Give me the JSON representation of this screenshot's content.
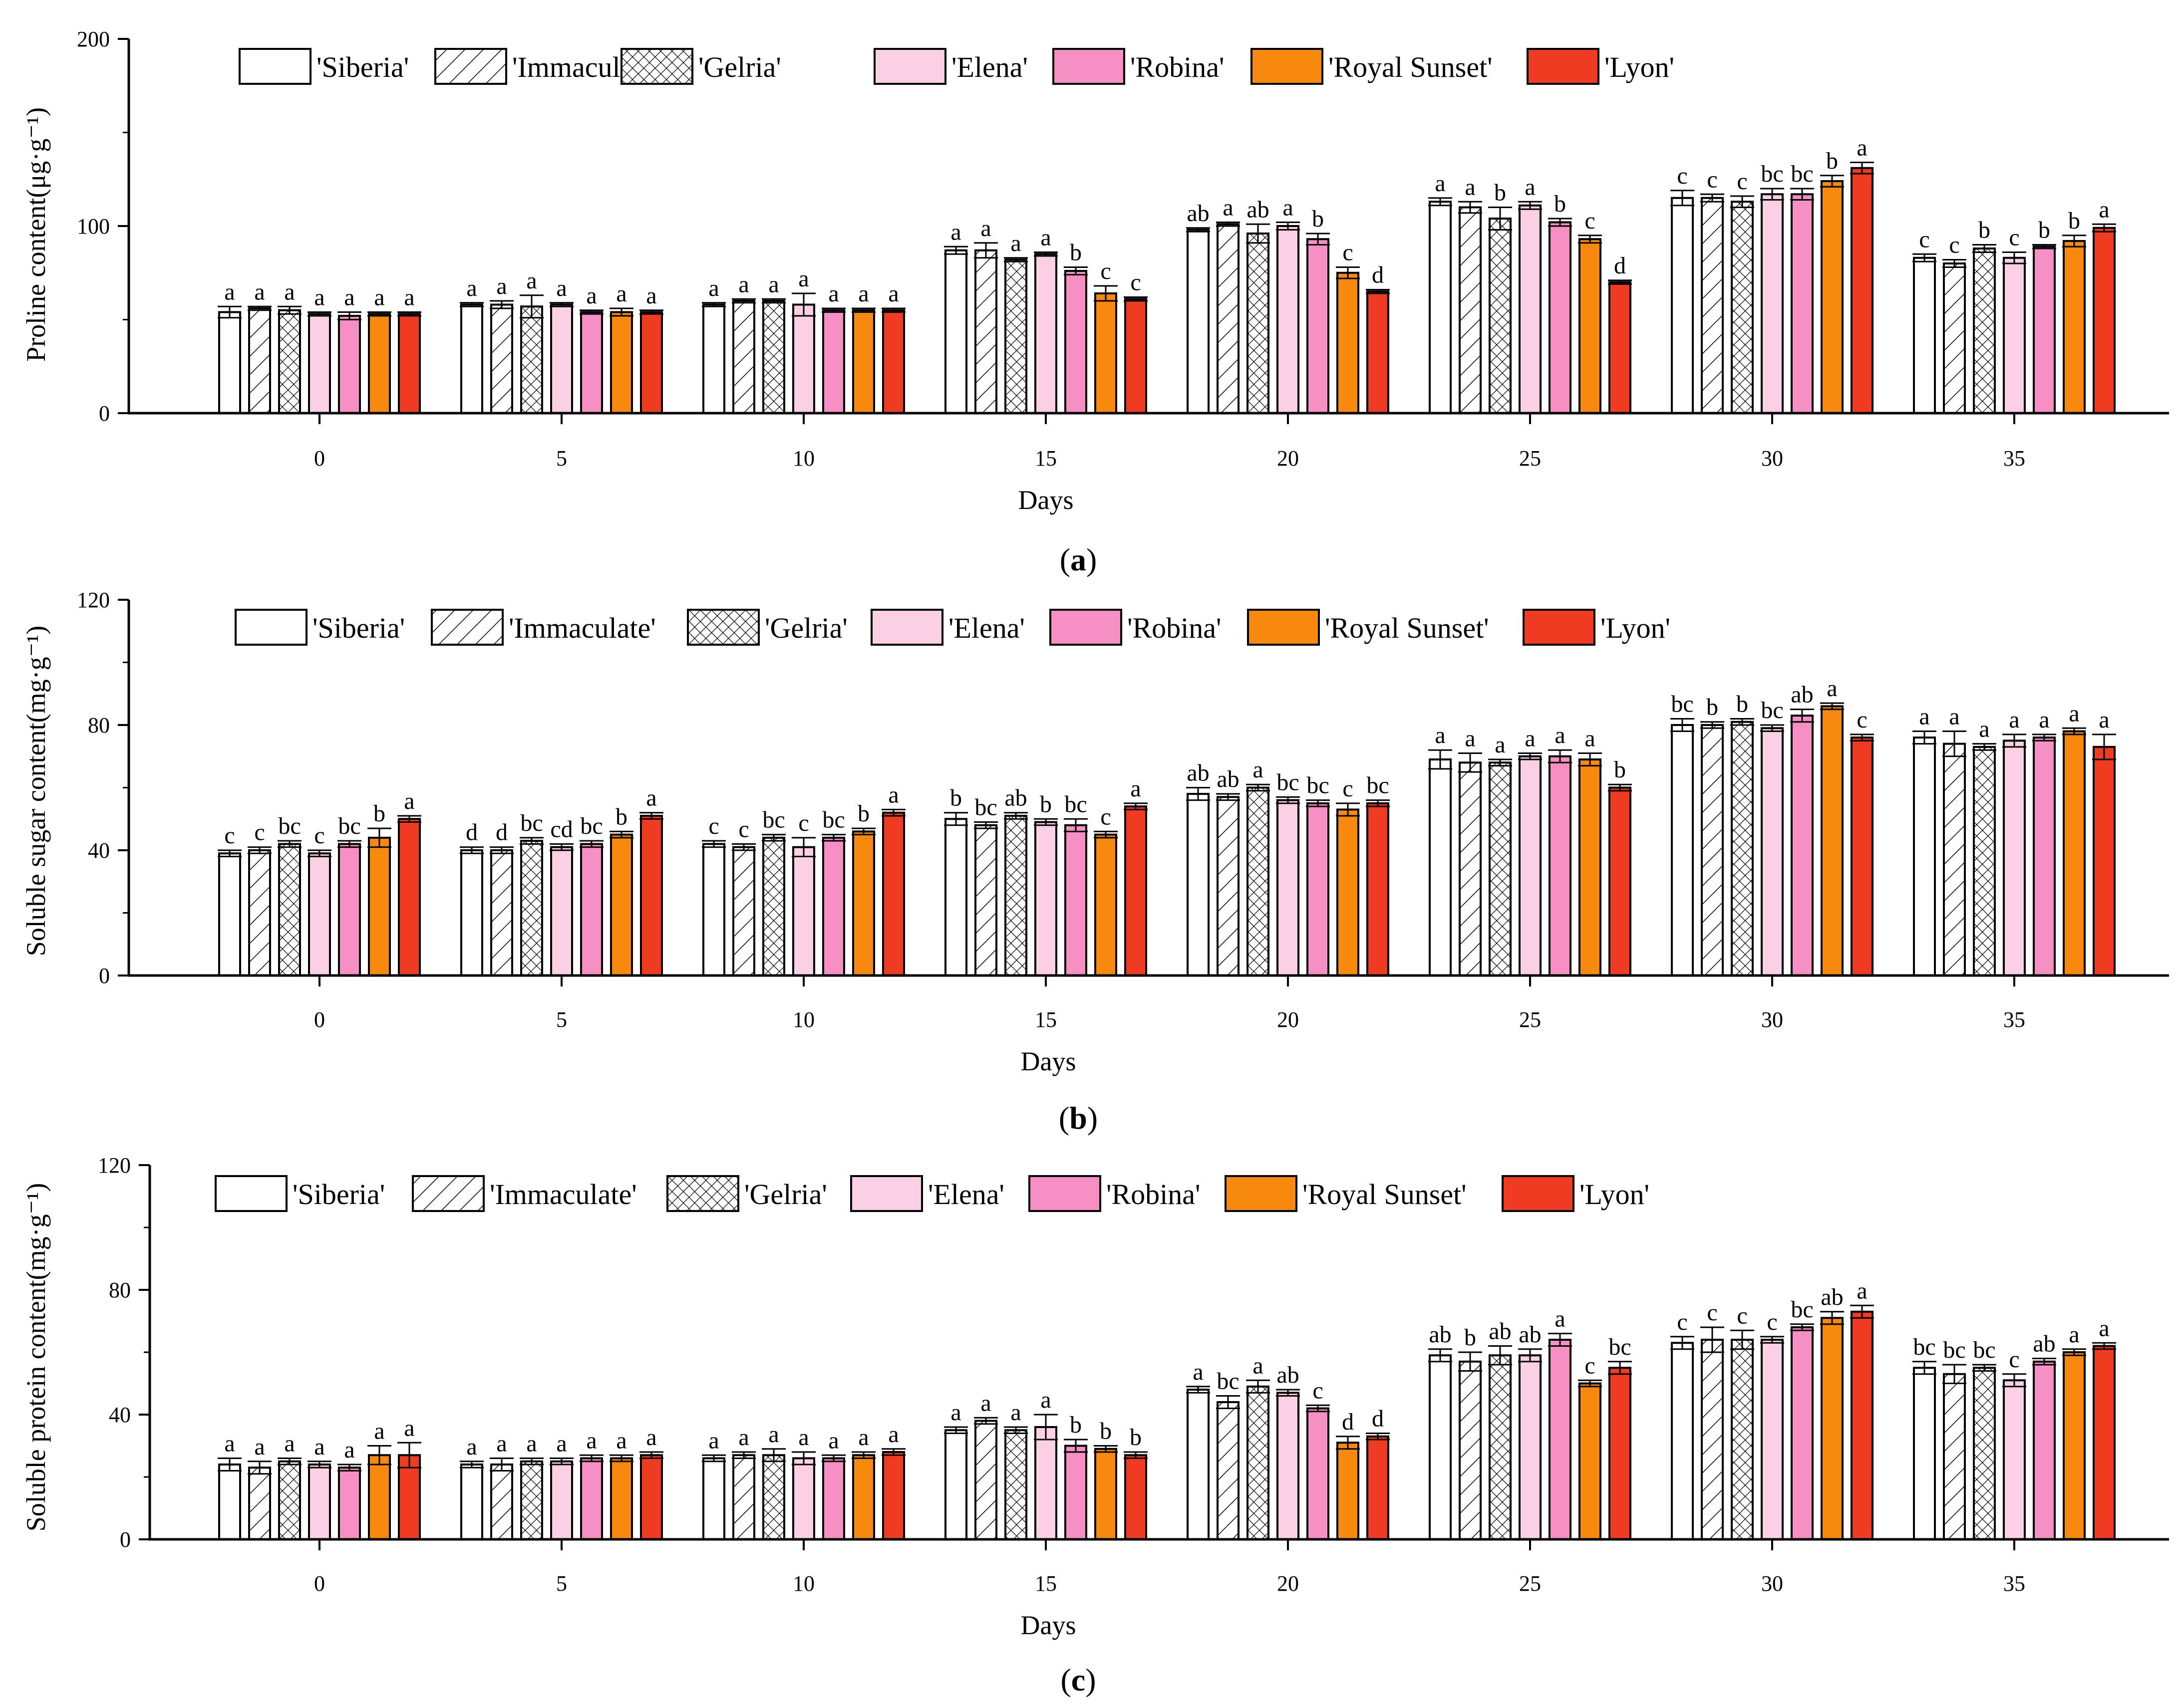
{
  "legend": [
    "'Siberia'",
    "'Immaculate'",
    "'Gelria'",
    "'Elena'",
    "'Robina'",
    "'Royal Sunset'",
    "'Lyon'"
  ],
  "colors": {
    "Siberia": "#ffffff",
    "Immaculate": "#ffffff",
    "Gelria": "#ffffff",
    "Elena": "#fcd0e4",
    "Robina": "#f58fc4",
    "Royal Sunset": "#f78a0e",
    "Lyon": "#ef3b21"
  },
  "chart_data": [
    {
      "type": "bar",
      "panel": "(a)",
      "panel_letter": "a",
      "xlabel": "Days",
      "ylabel": "Proline content(μg·g⁻¹)",
      "ylim": [
        0,
        200
      ],
      "yticks": [
        0,
        100,
        200
      ],
      "categories": [
        "0",
        "5",
        "10",
        "15",
        "20",
        "25",
        "30",
        "35"
      ],
      "series": [
        {
          "name": "'Siberia'",
          "values": [
            54,
            58,
            58,
            87,
            98,
            113,
            115,
            83
          ],
          "errors": [
            3,
            1,
            1,
            2,
            1,
            2,
            4,
            2
          ],
          "sig": [
            "a",
            "a",
            "a",
            "a",
            "ab",
            "a",
            "c",
            "c"
          ]
        },
        {
          "name": "'Immaculate'",
          "values": [
            56,
            58,
            60,
            87,
            101,
            110,
            115,
            80
          ],
          "errors": [
            1,
            2,
            1,
            4,
            1,
            3,
            2,
            2
          ],
          "sig": [
            "a",
            "a",
            "a",
            "a",
            "a",
            "a",
            "c",
            "c"
          ]
        },
        {
          "name": "'Gelria'",
          "values": [
            55,
            57,
            60,
            82,
            96,
            104,
            113,
            88
          ],
          "errors": [
            2,
            6,
            1,
            1,
            5,
            6,
            3,
            2
          ],
          "sig": [
            "a",
            "a",
            "a",
            "a",
            "ab",
            "b",
            "c",
            "b"
          ]
        },
        {
          "name": "'Elena'",
          "values": [
            53,
            58,
            58,
            85,
            100,
            111,
            117,
            83
          ],
          "errors": [
            1,
            1,
            6,
            1,
            2,
            2,
            3,
            3
          ],
          "sig": [
            "a",
            "a",
            "a",
            "a",
            "a",
            "a",
            "bc",
            "c"
          ]
        },
        {
          "name": "'Robina'",
          "values": [
            52,
            54,
            55,
            76,
            93,
            102,
            117,
            89
          ],
          "errors": [
            2,
            1,
            1,
            2,
            3,
            2,
            3,
            1
          ],
          "sig": [
            "a",
            "a",
            "a",
            "b",
            "b",
            "b",
            "bc",
            "b"
          ]
        },
        {
          "name": "'Royal Sunset'",
          "values": [
            53,
            54,
            55,
            64,
            75,
            93,
            124,
            92
          ],
          "errors": [
            1,
            2,
            1,
            4,
            3,
            2,
            3,
            3
          ],
          "sig": [
            "a",
            "a",
            "a",
            "c",
            "c",
            "c",
            "b",
            "b"
          ]
        },
        {
          "name": "'Lyon'",
          "values": [
            53,
            54,
            55,
            61,
            65,
            70,
            131,
            99
          ],
          "errors": [
            1,
            1,
            1,
            1,
            1,
            1,
            3,
            2
          ],
          "sig": [
            "a",
            "a",
            "a",
            "c",
            "d",
            "d",
            "a",
            "a"
          ]
        }
      ]
    },
    {
      "type": "bar",
      "panel": "(b)",
      "panel_letter": "b",
      "xlabel": "Days",
      "ylabel": "Soluble sugar content(mg·g⁻¹)",
      "ylim": [
        0,
        120
      ],
      "yticks": [
        0,
        40,
        80,
        120
      ],
      "categories": [
        "0",
        "5",
        "10",
        "15",
        "20",
        "25",
        "30",
        "35"
      ],
      "series": [
        {
          "name": "'Siberia'",
          "values": [
            39,
            40,
            42,
            50,
            58,
            69,
            80,
            76
          ],
          "errors": [
            1,
            1,
            1,
            2,
            2,
            3,
            2,
            2
          ],
          "sig": [
            "c",
            "d",
            "c",
            "b",
            "ab",
            "a",
            "bc",
            "a"
          ]
        },
        {
          "name": "'Immaculate'",
          "values": [
            40,
            40,
            41,
            48,
            57,
            68,
            80,
            74
          ],
          "errors": [
            1,
            1,
            1,
            1,
            1,
            3,
            1,
            4
          ],
          "sig": [
            "c",
            "d",
            "c",
            "bc",
            "ab",
            "a",
            "b",
            "a"
          ]
        },
        {
          "name": "'Gelria'",
          "values": [
            42,
            43,
            44,
            51,
            60,
            68,
            81,
            73
          ],
          "errors": [
            1,
            1,
            1,
            1,
            1,
            1,
            1,
            1
          ],
          "sig": [
            "bc",
            "bc",
            "bc",
            "ab",
            "a",
            "a",
            "b",
            "a"
          ]
        },
        {
          "name": "'Elena'",
          "values": [
            39,
            41,
            41,
            49,
            56,
            70,
            79,
            75
          ],
          "errors": [
            1,
            1,
            3,
            1,
            1,
            1,
            1,
            2
          ],
          "sig": [
            "c",
            "cd",
            "c",
            "b",
            "bc",
            "a",
            "bc",
            "a"
          ]
        },
        {
          "name": "'Robina'",
          "values": [
            42,
            42,
            44,
            48,
            55,
            70,
            83,
            76
          ],
          "errors": [
            1,
            1,
            1,
            2,
            1,
            2,
            2,
            1
          ],
          "sig": [
            "bc",
            "bc",
            "bc",
            "bc",
            "bc",
            "a",
            "ab",
            "a"
          ]
        },
        {
          "name": "'Royal Sunset'",
          "values": [
            44,
            45,
            46,
            45,
            53,
            69,
            86,
            78
          ],
          "errors": [
            3,
            1,
            1,
            1,
            2,
            2,
            1,
            1
          ],
          "sig": [
            "b",
            "b",
            "b",
            "c",
            "c",
            "a",
            "a",
            "a"
          ]
        },
        {
          "name": "'Lyon'",
          "values": [
            50,
            51,
            52,
            54,
            55,
            60,
            76,
            73
          ],
          "errors": [
            1,
            1,
            1,
            1,
            1,
            1,
            1,
            4
          ],
          "sig": [
            "a",
            "a",
            "a",
            "a",
            "bc",
            "b",
            "c",
            "a"
          ]
        }
      ]
    },
    {
      "type": "bar",
      "panel": "(c)",
      "panel_letter": "c",
      "xlabel": "Days",
      "ylabel": "Soluble protein content(mg·g⁻¹)",
      "ylim": [
        0,
        120
      ],
      "yticks": [
        0,
        40,
        80,
        120
      ],
      "categories": [
        "0",
        "5",
        "10",
        "15",
        "20",
        "25",
        "30",
        "35"
      ],
      "series": [
        {
          "name": "'Siberia'",
          "values": [
            24,
            24,
            26,
            35,
            48,
            59,
            63,
            55
          ],
          "errors": [
            2,
            1,
            1,
            1,
            1,
            2,
            2,
            2
          ],
          "sig": [
            "a",
            "a",
            "a",
            "a",
            "a",
            "ab",
            "c",
            "bc"
          ]
        },
        {
          "name": "'Immaculate'",
          "values": [
            23,
            24,
            27,
            38,
            44,
            57,
            64,
            53
          ],
          "errors": [
            2,
            2,
            1,
            1,
            2,
            3,
            4,
            3
          ],
          "sig": [
            "a",
            "a",
            "a",
            "a",
            "bc",
            "b",
            "c",
            "bc"
          ]
        },
        {
          "name": "'Gelria'",
          "values": [
            25,
            25,
            27,
            35,
            49,
            59,
            64,
            55
          ],
          "errors": [
            1,
            1,
            2,
            1,
            2,
            3,
            3,
            1
          ],
          "sig": [
            "a",
            "a",
            "a",
            "a",
            "a",
            "ab",
            "c",
            "bc"
          ]
        },
        {
          "name": "'Elena'",
          "values": [
            24,
            25,
            26,
            36,
            47,
            59,
            64,
            51
          ],
          "errors": [
            1,
            1,
            2,
            4,
            1,
            2,
            1,
            2
          ],
          "sig": [
            "a",
            "a",
            "a",
            "a",
            "ab",
            "ab",
            "c",
            "c"
          ]
        },
        {
          "name": "'Robina'",
          "values": [
            23,
            26,
            26,
            30,
            42,
            64,
            68,
            57
          ],
          "errors": [
            1,
            1,
            1,
            2,
            1,
            2,
            1,
            1
          ],
          "sig": [
            "a",
            "a",
            "a",
            "b",
            "c",
            "a",
            "bc",
            "ab"
          ]
        },
        {
          "name": "'Royal Sunset'",
          "values": [
            27,
            26,
            27,
            29,
            31,
            50,
            71,
            60
          ],
          "errors": [
            3,
            1,
            1,
            1,
            2,
            1,
            2,
            1
          ],
          "sig": [
            "a",
            "a",
            "a",
            "b",
            "d",
            "c",
            "ab",
            "a"
          ]
        },
        {
          "name": "'Lyon'",
          "values": [
            27,
            27,
            28,
            27,
            33,
            55,
            73,
            62
          ],
          "errors": [
            4,
            1,
            1,
            1,
            1,
            2,
            2,
            1
          ],
          "sig": [
            "a",
            "a",
            "a",
            "b",
            "d",
            "bc",
            "a",
            "a"
          ]
        }
      ]
    }
  ]
}
